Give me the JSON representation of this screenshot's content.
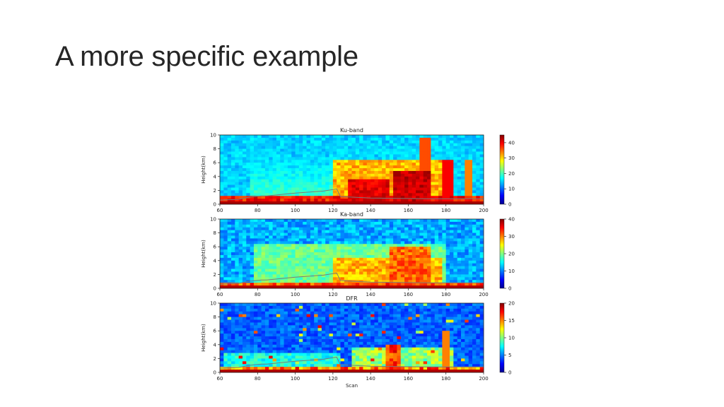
{
  "slide": {
    "title": "A more specific example"
  },
  "chart_data": [
    {
      "type": "heatmap",
      "title": "Ku-band",
      "xlabel": "",
      "ylabel": "Height(km)",
      "xlim": [
        60,
        200
      ],
      "ylim": [
        0,
        10
      ],
      "x_ticks": [
        "60",
        "80",
        "100",
        "120",
        "140",
        "160",
        "180",
        "200"
      ],
      "y_ticks": [
        "0",
        "2",
        "4",
        "6",
        "8",
        "10"
      ],
      "colorbar": {
        "min": 0,
        "max": 45,
        "ticks": [
          "0",
          "10",
          "20",
          "30",
          "40"
        ],
        "colormap": "jet"
      }
    },
    {
      "type": "heatmap",
      "title": "Ka-band",
      "xlabel": "",
      "ylabel": "Height(km)",
      "xlim": [
        60,
        200
      ],
      "ylim": [
        0,
        10
      ],
      "x_ticks": [
        "60",
        "80",
        "100",
        "120",
        "140",
        "160",
        "180",
        "200"
      ],
      "y_ticks": [
        "0",
        "2",
        "4",
        "6",
        "8",
        "10"
      ],
      "colorbar": {
        "min": 0,
        "max": 40,
        "ticks": [
          "0",
          "10",
          "20",
          "30",
          "40"
        ],
        "colormap": "jet"
      }
    },
    {
      "type": "heatmap",
      "title": "DFR",
      "xlabel": "Scan",
      "ylabel": "Height(km)",
      "xlim": [
        60,
        200
      ],
      "ylim": [
        0,
        10
      ],
      "x_ticks": [
        "60",
        "80",
        "100",
        "120",
        "140",
        "160",
        "180",
        "200"
      ],
      "y_ticks": [
        "0",
        "2",
        "4",
        "6",
        "8",
        "10"
      ],
      "colorbar": {
        "min": 0,
        "max": 20,
        "ticks": [
          "0",
          "5",
          "10",
          "15",
          "20"
        ],
        "colormap": "jet"
      }
    }
  ]
}
